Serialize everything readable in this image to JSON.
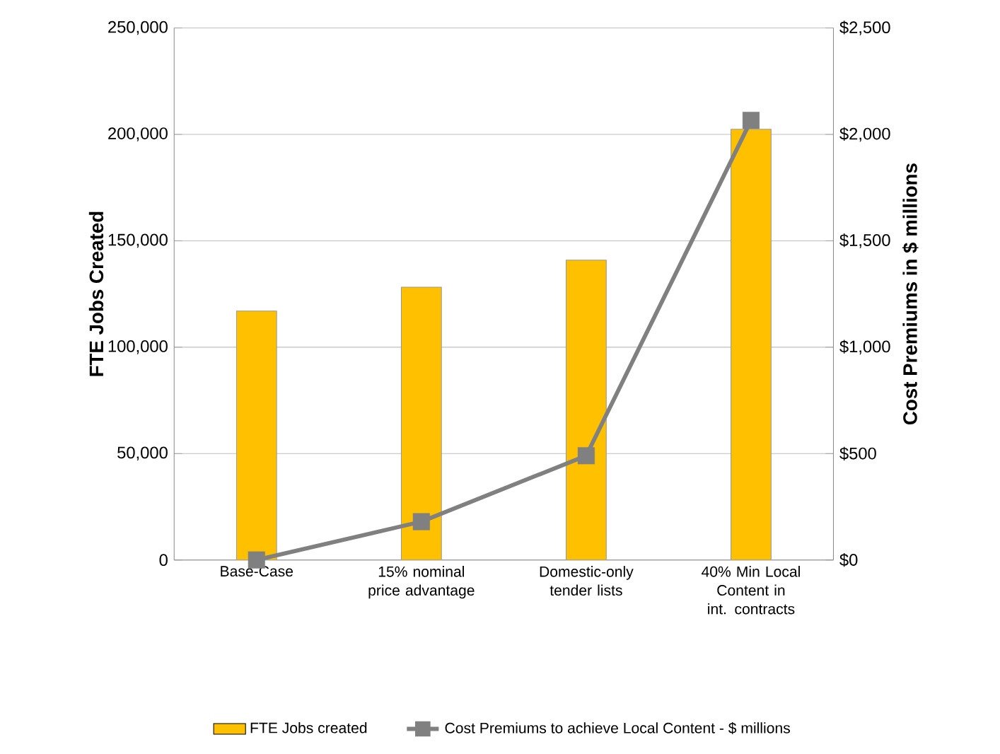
{
  "chart_data": {
    "type": "bar",
    "categories": [
      "Base-Case",
      "15% nominal price advantage",
      "Domestic-only tender lists",
      "40% Min Local Content in int. contracts"
    ],
    "series": [
      {
        "name": "FTE Jobs created",
        "color": "#ffc000",
        "values": [
          117000,
          128200,
          140900,
          202400
        ]
      },
      {
        "name": "Cost Premiums to achieve Local Content - $ millions",
        "type": "line",
        "axis": "y2",
        "color": "#808080",
        "marker": "square",
        "values": [
          0,
          180,
          490,
          2066
        ]
      }
    ],
    "ylabel": "FTE  Jobs Created",
    "y2label": "Cost Premiums in $ millions",
    "ylim": [
      0,
      250000
    ],
    "yticks": [
      {
        "value": 0,
        "label": "0"
      },
      {
        "value": 50000,
        "label": "50,000"
      },
      {
        "value": 100000,
        "label": "100,000"
      },
      {
        "value": 150000,
        "label": "150,000"
      },
      {
        "value": 200000,
        "label": "200,000"
      },
      {
        "value": 250000,
        "label": "250,000"
      }
    ],
    "y2lim": [
      0,
      2500
    ],
    "y2ticks": [
      {
        "value": 0,
        "label": "$0"
      },
      {
        "value": 500,
        "label": "$500"
      },
      {
        "value": 1000,
        "label": "$1,000"
      },
      {
        "value": 1500,
        "label": "$1,500"
      },
      {
        "value": 2000,
        "label": "$2,000"
      },
      {
        "value": 2500,
        "label": "$2,500"
      }
    ],
    "grid": "y",
    "legend": "bottom"
  }
}
